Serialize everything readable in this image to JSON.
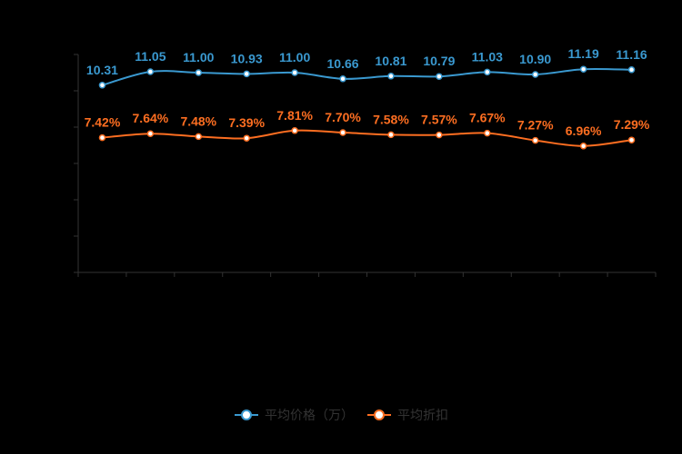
{
  "chart_data": {
    "type": "line",
    "smooth": true,
    "num_points": 12,
    "x_tick_labels_visible": false,
    "y_tick_labels_visible": false,
    "series": [
      {
        "name": "平均价格（万）",
        "color": "#3a99d0",
        "values": [
          10.31,
          11.05,
          11.0,
          10.93,
          11.0,
          10.66,
          10.81,
          10.79,
          11.03,
          10.9,
          11.19,
          11.16
        ],
        "label_decimals": 2,
        "label_suffix": ""
      },
      {
        "name": "平均折扣",
        "color": "#fd6e21",
        "values": [
          7.42,
          7.64,
          7.48,
          7.39,
          7.81,
          7.7,
          7.58,
          7.57,
          7.67,
          7.27,
          6.96,
          7.29
        ],
        "label_decimals": 2,
        "label_suffix": "%"
      }
    ],
    "ylim": [
      0,
      12
    ],
    "y_tick_interval": 2,
    "grid_lines": false,
    "legend_position": "bottom-center",
    "axis_color": "#333333",
    "legend_text_color": "#333333",
    "background_color": "#000000",
    "marker_fill": "#ffffff"
  }
}
